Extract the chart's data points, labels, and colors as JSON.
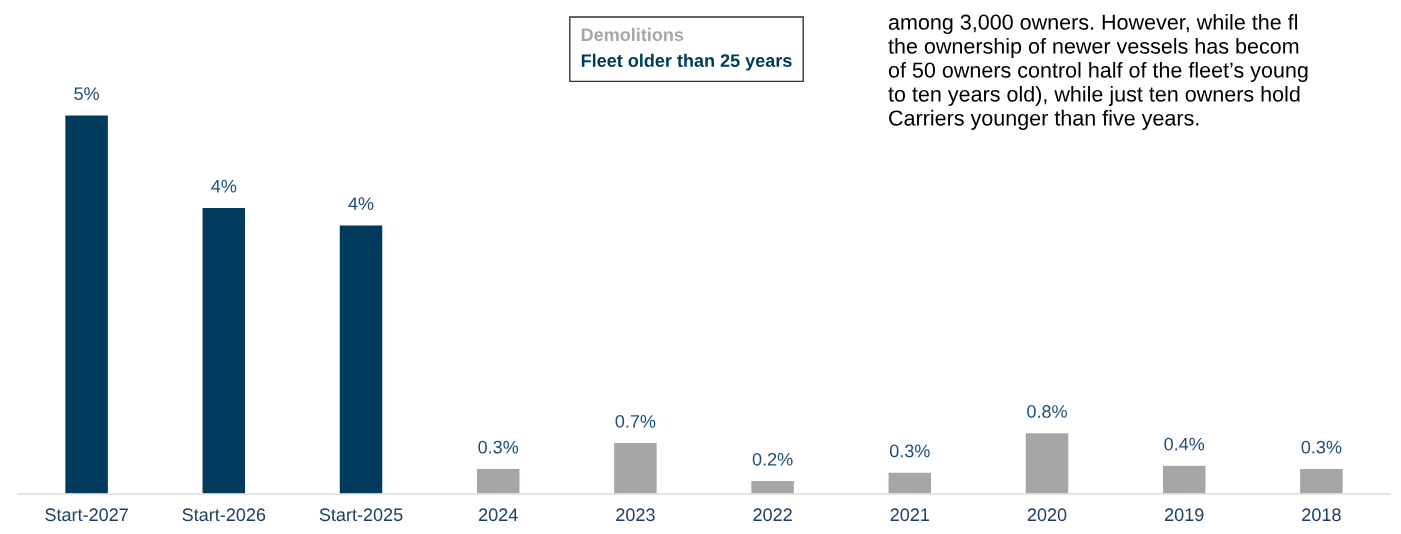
{
  "chart_data": {
    "type": "bar",
    "categories": [
      "Start-2027",
      "Start-2026",
      "Start-2025",
      "2024",
      "2023",
      "2022",
      "2021",
      "2020",
      "2019",
      "2018"
    ],
    "series": [
      {
        "name": "Fleet older than 25 years",
        "color": "#003a5c",
        "values": [
          5.0,
          3.78,
          3.55,
          null,
          null,
          null,
          null,
          null,
          null,
          null
        ],
        "value_labels": [
          "5%",
          "4%",
          "4%",
          null,
          null,
          null,
          null,
          null,
          null,
          null
        ]
      },
      {
        "name": "Demolitions",
        "color": "#a6a6a6",
        "values": [
          null,
          null,
          null,
          0.34,
          0.68,
          0.18,
          0.29,
          0.81,
          0.38,
          0.34
        ],
        "value_labels": [
          null,
          null,
          null,
          "0.3%",
          "0.7%",
          "0.2%",
          "0.3%",
          "0.8%",
          "0.4%",
          "0.3%"
        ]
      }
    ],
    "legend": "top",
    "grid": false,
    "annotations": [
      "among 3,000 owners. However, while the fl\nthe ownership of newer vessels has becom\nof 50 owners control half of the fleet’s young\nto ten years old), while just ten owners hold\nCarriers younger than five years."
    ]
  }
}
